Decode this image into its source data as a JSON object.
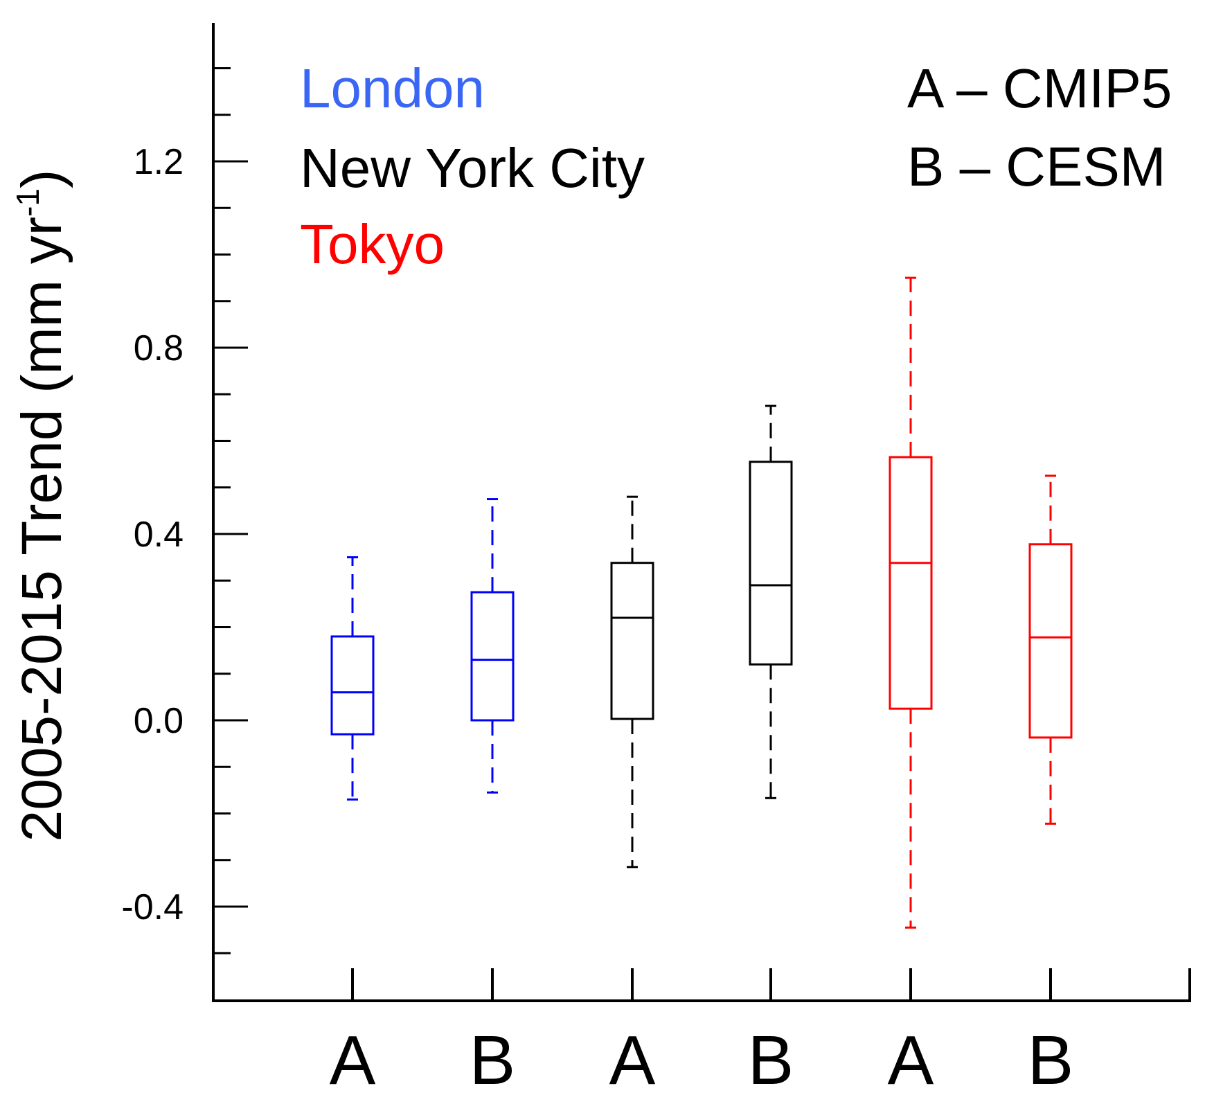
{
  "chart_data": {
    "type": "box",
    "ylabel_main": "2005-2015 Trend (mm yr",
    "ylabel_sup": "-1",
    "ylabel_close": ")",
    "ylim": [
      -0.6,
      1.5
    ],
    "y_major_ticks": [
      -0.4,
      0.0,
      0.4,
      0.8,
      1.2
    ],
    "y_major_tick_labels": [
      "-0.4",
      "0.0",
      "0.4",
      "0.8",
      "1.2"
    ],
    "y_minor_step": 0.1,
    "legend_cities": [
      {
        "name": "London",
        "color": "#3a66f5"
      },
      {
        "name": "New York City",
        "color": "#000000"
      },
      {
        "name": "Tokyo",
        "color": "#ff0000"
      }
    ],
    "legend_models": [
      "A – CMIP5",
      "B – CESM"
    ],
    "boxes": [
      {
        "city": "London",
        "model": "A",
        "label": "A",
        "color": "#0000ff",
        "whisker_low": -0.17,
        "q1": -0.03,
        "median": 0.06,
        "q3": 0.18,
        "whisker_high": 0.35
      },
      {
        "city": "London",
        "model": "B",
        "label": "B",
        "color": "#0000ff",
        "whisker_low": -0.155,
        "q1": 0.0,
        "median": 0.13,
        "q3": 0.275,
        "whisker_high": 0.475
      },
      {
        "city": "New York City",
        "model": "A",
        "label": "A",
        "color": "#000000",
        "whisker_low": -0.315,
        "q1": 0.003,
        "median": 0.22,
        "q3": 0.338,
        "whisker_high": 0.48
      },
      {
        "city": "New York City",
        "model": "B",
        "label": "B",
        "color": "#000000",
        "whisker_low": -0.167,
        "q1": 0.12,
        "median": 0.29,
        "q3": 0.555,
        "whisker_high": 0.675
      },
      {
        "city": "Tokyo",
        "model": "A",
        "label": "A",
        "color": "#ff0000",
        "whisker_low": -0.445,
        "q1": 0.025,
        "median": 0.338,
        "q3": 0.565,
        "whisker_high": 0.95
      },
      {
        "city": "Tokyo",
        "model": "B",
        "label": "B",
        "color": "#ff0000",
        "whisker_low": -0.222,
        "q1": -0.037,
        "median": 0.178,
        "q3": 0.378,
        "whisker_high": 0.525
      }
    ]
  }
}
